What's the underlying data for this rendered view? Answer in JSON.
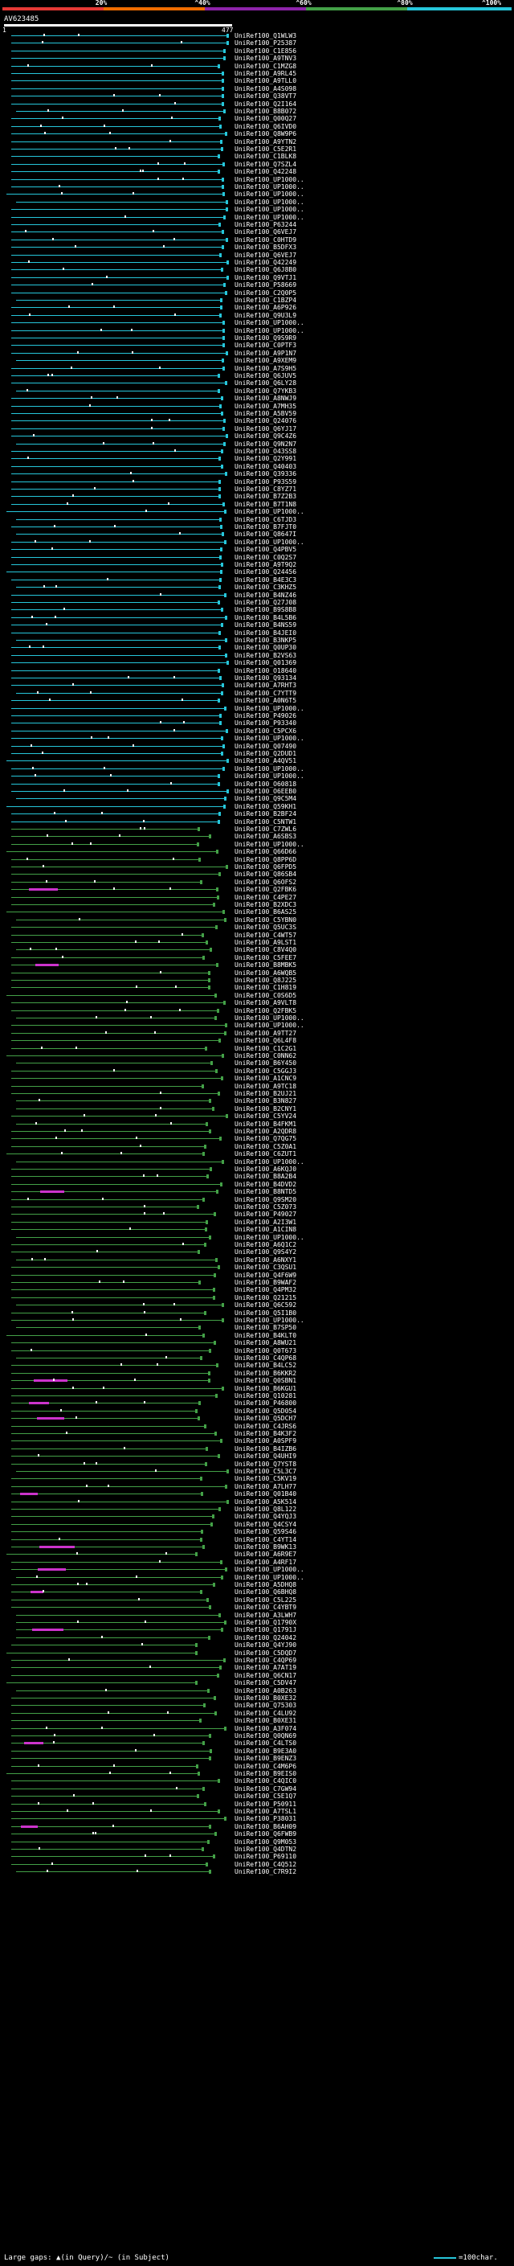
{
  "scale": {
    "labels": [
      "20%",
      "^40%",
      "^60%",
      "^80%",
      "^100%"
    ],
    "colors": [
      "#e53935",
      "#ef6c00",
      "#8e24aa",
      "#43a047",
      "#26c6da"
    ]
  },
  "query": {
    "name": "AV623485",
    "range_start": "1",
    "range_end": "477"
  },
  "colors": {
    "high": "#26c6da",
    "mid": "#43a047",
    "gap": "#cc33cc",
    "marker": "#ffffff"
  },
  "hits": [
    "UniRef100_Q1WLW3",
    "UniRef100_P25387",
    "UniRef100_C1E856",
    "UniRef100_A9TNV3",
    "UniRef100_C1MZG8",
    "UniRef100_A9RL45",
    "UniRef100_A9TLL0",
    "UniRef100_A4S098",
    "UniRef100_Q38VT7",
    "UniRef100_Q2I164",
    "UniRef100_B8B072",
    "UniRef100_Q00Q27",
    "UniRef100_Q6IVD0",
    "UniRef100_Q8W9P6",
    "UniRef100_A9YTN2",
    "UniRef100_C5E2R1",
    "UniRef100_C1BLK8",
    "UniRef100_Q7SZL4",
    "UniRef100_Q42248",
    "UniRef100_UP1000..",
    "UniRef100_UP1000..",
    "UniRef100_UP1000..",
    "UniRef100_UP1000..",
    "UniRef100_UP1000..",
    "UniRef100_UP1000..",
    "UniRef100_P63244",
    "UniRef100_Q6VEJ7",
    "UniRef100_C0HTD9",
    "UniRef100_B5DFX3",
    "UniRef100_Q6VEJ7",
    "UniRef100_Q42249",
    "UniRef100_Q6J8B0",
    "UniRef100_Q9VTJ1",
    "UniRef100_P58669",
    "UniRef100_C2Q0P5",
    "UniRef100_C1BZP4",
    "UniRef100_A6P926",
    "UniRef100_Q9U3L9",
    "UniRef100_UP1000..",
    "UniRef100_UP1000..",
    "UniRef100_Q9S9R9",
    "UniRef100_C0PTF3",
    "UniRef100_A9P1N7",
    "UniRef100_A9XEM9",
    "UniRef100_A7S9H5",
    "UniRef100_Q6JUV5",
    "UniRef100_Q6LY28",
    "UniRef100_Q7YKB3",
    "UniRef100_A8NWJ9",
    "UniRef100_A7MH35",
    "UniRef100_A5BV59",
    "UniRef100_Q24076",
    "UniRef100_Q6YJ17",
    "UniRef100_Q9C4Z6",
    "UniRef100_Q9N2N7",
    "UniRef100_O43SS8",
    "UniRef100_Q2Y991",
    "UniRef100_Q40403",
    "UniRef100_Q39336",
    "UniRef100_P93S59",
    "UniRef100_C8YZ71",
    "UniRef100_B7Z2B3",
    "UniRef100_B7T1N8",
    "UniRef100_UP1000..",
    "UniRef100_C6TJD3",
    "UniRef100_B7FJT0",
    "UniRef100_Q8647I",
    "UniRef100_UP1000..",
    "UniRef100_Q4PBV5",
    "UniRef100_C0Q2S7",
    "UniRef100_A9T9Q2",
    "UniRef100_Q24456",
    "UniRef100_B4E3C3",
    "UniRef100_C3KHZ5",
    "UniRef100_B4NZ46",
    "UniRef100_Q27J08",
    "UniRef100_B9S8B8",
    "UniRef100_B4L5B6",
    "UniRef100_B4NS59",
    "UniRef100_B4JEI0",
    "UniRef100_B3NKP5",
    "UniRef100_Q0UP30",
    "UniRef100_B2VS63",
    "UniRef100_Q01369",
    "UniRef100_O18640",
    "UniRef100_Q93134",
    "UniRef100_A7RHT3",
    "UniRef100_C7YTT9",
    "UniRef100_A0N6T5",
    "UniRef100_UP1000..",
    "UniRef100_P49026",
    "UniRef100_P93340",
    "UniRef100_C5PCX6",
    "UniRef100_UP1000..",
    "UniRef100_Q07490",
    "UniRef100_Q2DUD1",
    "UniRef100_A4QV51",
    "UniRef100_UP1000..",
    "UniRef100_UP1000..",
    "UniRef100_O60818",
    "UniRef100_O6EEB0",
    "UniRef100_Q9C5M4",
    "UniRef100_Q59KH1",
    "UniRef100_B2BF24",
    "UniRef100_C5NTW1",
    "UniRef100_C7ZWL6",
    "UniRef100_A6SBS3",
    "UniRef100_UP1000..",
    "UniRef100_Q66D66",
    "UniRef100_Q8PP6D",
    "UniRef100_Q6FPD5",
    "UniRef100_Q86SB4",
    "UniRef100_Q6OFS2",
    "UniRef100_Q2FBK6",
    "UniRef100_C4PE27",
    "UniRef100_B2XDC3",
    "UniRef100_B6AS25",
    "UniRef100_C5YBN0",
    "UniRef100_Q5UC3S",
    "UniRef100_C4WT57",
    "UniRef100_A9LST1",
    "UniRef100_C8V4Q0",
    "UniRef100_C5FEE7",
    "UniRef100_B8MBK5",
    "UniRef100_A6WQB5",
    "UniRef100_Q8J225",
    "UniRef100_C1H819",
    "UniRef100_C0S6D5",
    "UniRef100_A9VLT8",
    "UniRef100_Q2FBK5",
    "UniRef100_UP1000..",
    "UniRef100_UP1000..",
    "UniRef100_A9TT27",
    "UniRef100_Q6L4F8",
    "UniRef100_C1C2G1",
    "UniRef100_C0NN62",
    "UniRef100_B6Y450",
    "UniRef100_C5GGJ3",
    "UniRef100_A1CNC9",
    "UniRef100_A9TC18",
    "UniRef100_B2UJ21",
    "UniRef100_B3N827",
    "UniRef100_B2CNY1",
    "UniRef100_C5YV24",
    "UniRef100_B4FKM1",
    "UniRef100_A2QDR8",
    "UniRef100_Q7QG75",
    "UniRef100_C5Z0A1",
    "UniRef100_C6ZUT1",
    "UniRef100_UP1000..",
    "UniRef100_A6KQJ0",
    "UniRef100_B8A2B4",
    "UniRef100_B4DVD2",
    "UniRef100_B8NTD5",
    "UniRef100_Q9SM20",
    "UniRef100_C5Z073",
    "UniRef100_P49027",
    "UniRef100_A2I3W1",
    "UniRef100_A1CIN8",
    "UniRef100_UP1000..",
    "UniRef100_A6Q1C2",
    "UniRef100_Q9S4Y2",
    "UniRef100_A6NXY1",
    "UniRef100_C3QSU1",
    "UniRef100_Q4F6W9",
    "UniRef100_B9WAF2",
    "UniRef100_Q4PM32",
    "UniRef100_Q21215",
    "UniRef100_Q6C592",
    "UniRef100_Q5I1B0",
    "UniRef100_UP1000..",
    "UniRef100_B7SP50",
    "UniRef100_B4KLT0",
    "UniRef100_A8WU21",
    "UniRef100_Q0T673",
    "UniRef100_C4QP68",
    "UniRef100_B4LC52",
    "UniRef100_B6KKR2",
    "UniRef100_Q0SBN1",
    "UniRef100_B6KGU1",
    "UniRef100_Q10281",
    "UniRef100_P46800",
    "UniRef100_Q5D054",
    "UniRef100_Q5DCH7",
    "UniRef100_C4JRS6",
    "UniRef100_B4K3F2",
    "UniRef100_A0SPF9",
    "UniRef100_B4IZB6",
    "UniRef100_Q4UHI9",
    "UniRef100_Q7YST8",
    "UniRef100_C5L3C7",
    "UniRef100_C5KV19",
    "UniRef100_A7LH77",
    "UniRef100_Q01B40",
    "UniRef100_A5K514",
    "UniRef100_Q8L122",
    "UniRef100_Q4YQJ3",
    "UniRef100_Q4CSY4",
    "UniRef100_Q59S46",
    "UniRef100_C4YT14",
    "UniRef100_B9WK13",
    "UniRef100_A6R9E7",
    "UniRef100_A4RF17",
    "UniRef100_UP1000..",
    "UniRef100_UP1000..",
    "UniRef100_A5DHQ8",
    "UniRef100_Q6BHQ8",
    "UniRef100_C5L225",
    "UniRef100_C4YBT9",
    "UniRef100_A3LWH7",
    "UniRef100_Q1790X",
    "UniRef100_Q1791J",
    "UniRef100_Q24042",
    "UniRef100_Q4YJ90",
    "UniRef100_C5DQD7",
    "UniRef100_C4QP69",
    "UniRef100_A7AT19",
    "UniRef100_Q6CN17",
    "UniRef100_C5DV47",
    "UniRef100_A0B263",
    "UniRef100_B0XE32",
    "UniRef100_Q75303",
    "UniRef100_C4LU92",
    "UniRef100_B0XE31",
    "UniRef100_A3F074",
    "UniRef100_Q0QN69",
    "UniRef100_C4LTS0",
    "UniRef100_B9E3A0",
    "UniRef100_B9ENZ3",
    "UniRef100_C4M6P6",
    "UniRef100_B9EIS0",
    "UniRef100_C4QIC0",
    "UniRef100_C7GW94",
    "UniRef100_C5E1Q7",
    "UniRef100_P50911",
    "UniRef100_A7TSL1",
    "UniRef100_P38031",
    "UniRef100_B6AH09",
    "UniRef100_Q6FWB9",
    "UniRef100_Q9M053",
    "UniRef100_Q4DTN2",
    "UniRef100_P69110",
    "UniRef100_C4Q512",
    "UniRef100_C7R9I2"
  ],
  "legend": {
    "left": "Large gaps: ▲(in Query)/~ (in Subject)",
    "right": "=100char."
  }
}
